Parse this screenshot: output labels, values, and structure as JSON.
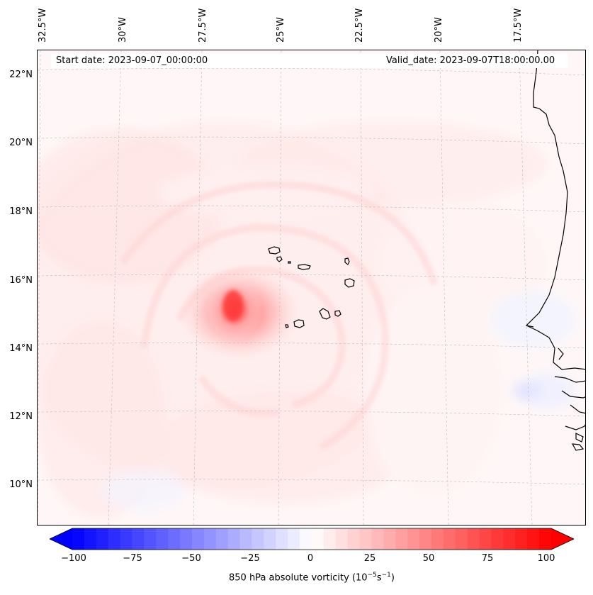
{
  "header": {
    "start_date": "Start date: 2023-09-07_00:00:00",
    "valid_date": "Valid_date: 2023-09-07T18:00:00.00"
  },
  "longitude_labels": [
    "32.5°W",
    "30°W",
    "27.5°W",
    "25°W",
    "22.5°W",
    "20°W",
    "17.5°W"
  ],
  "latitude_labels": [
    "22°N",
    "20°N",
    "18°N",
    "16°N",
    "14°N",
    "12°N",
    "10°N"
  ],
  "colorbar": {
    "ticks": [
      "−100",
      "−75",
      "−50",
      "−25",
      "0",
      "25",
      "50",
      "75",
      "100"
    ],
    "caption_main": "850 hPa absolute vorticity (10",
    "caption_exp1": "−5",
    "caption_mid": "s",
    "caption_exp2": "−1",
    "caption_end": ")",
    "min": -100,
    "max": 100,
    "step": 5,
    "color_low": "#0000ff",
    "color_mid": "#ffffff",
    "color_high": "#ff0000"
  },
  "map": {
    "background_color": "#fff7f7",
    "coastline_color": "#000000",
    "gridline_color": "#bbbbbb",
    "vortex_center": {
      "lon": -26.0,
      "lat": 15.3,
      "value": 85
    }
  }
}
